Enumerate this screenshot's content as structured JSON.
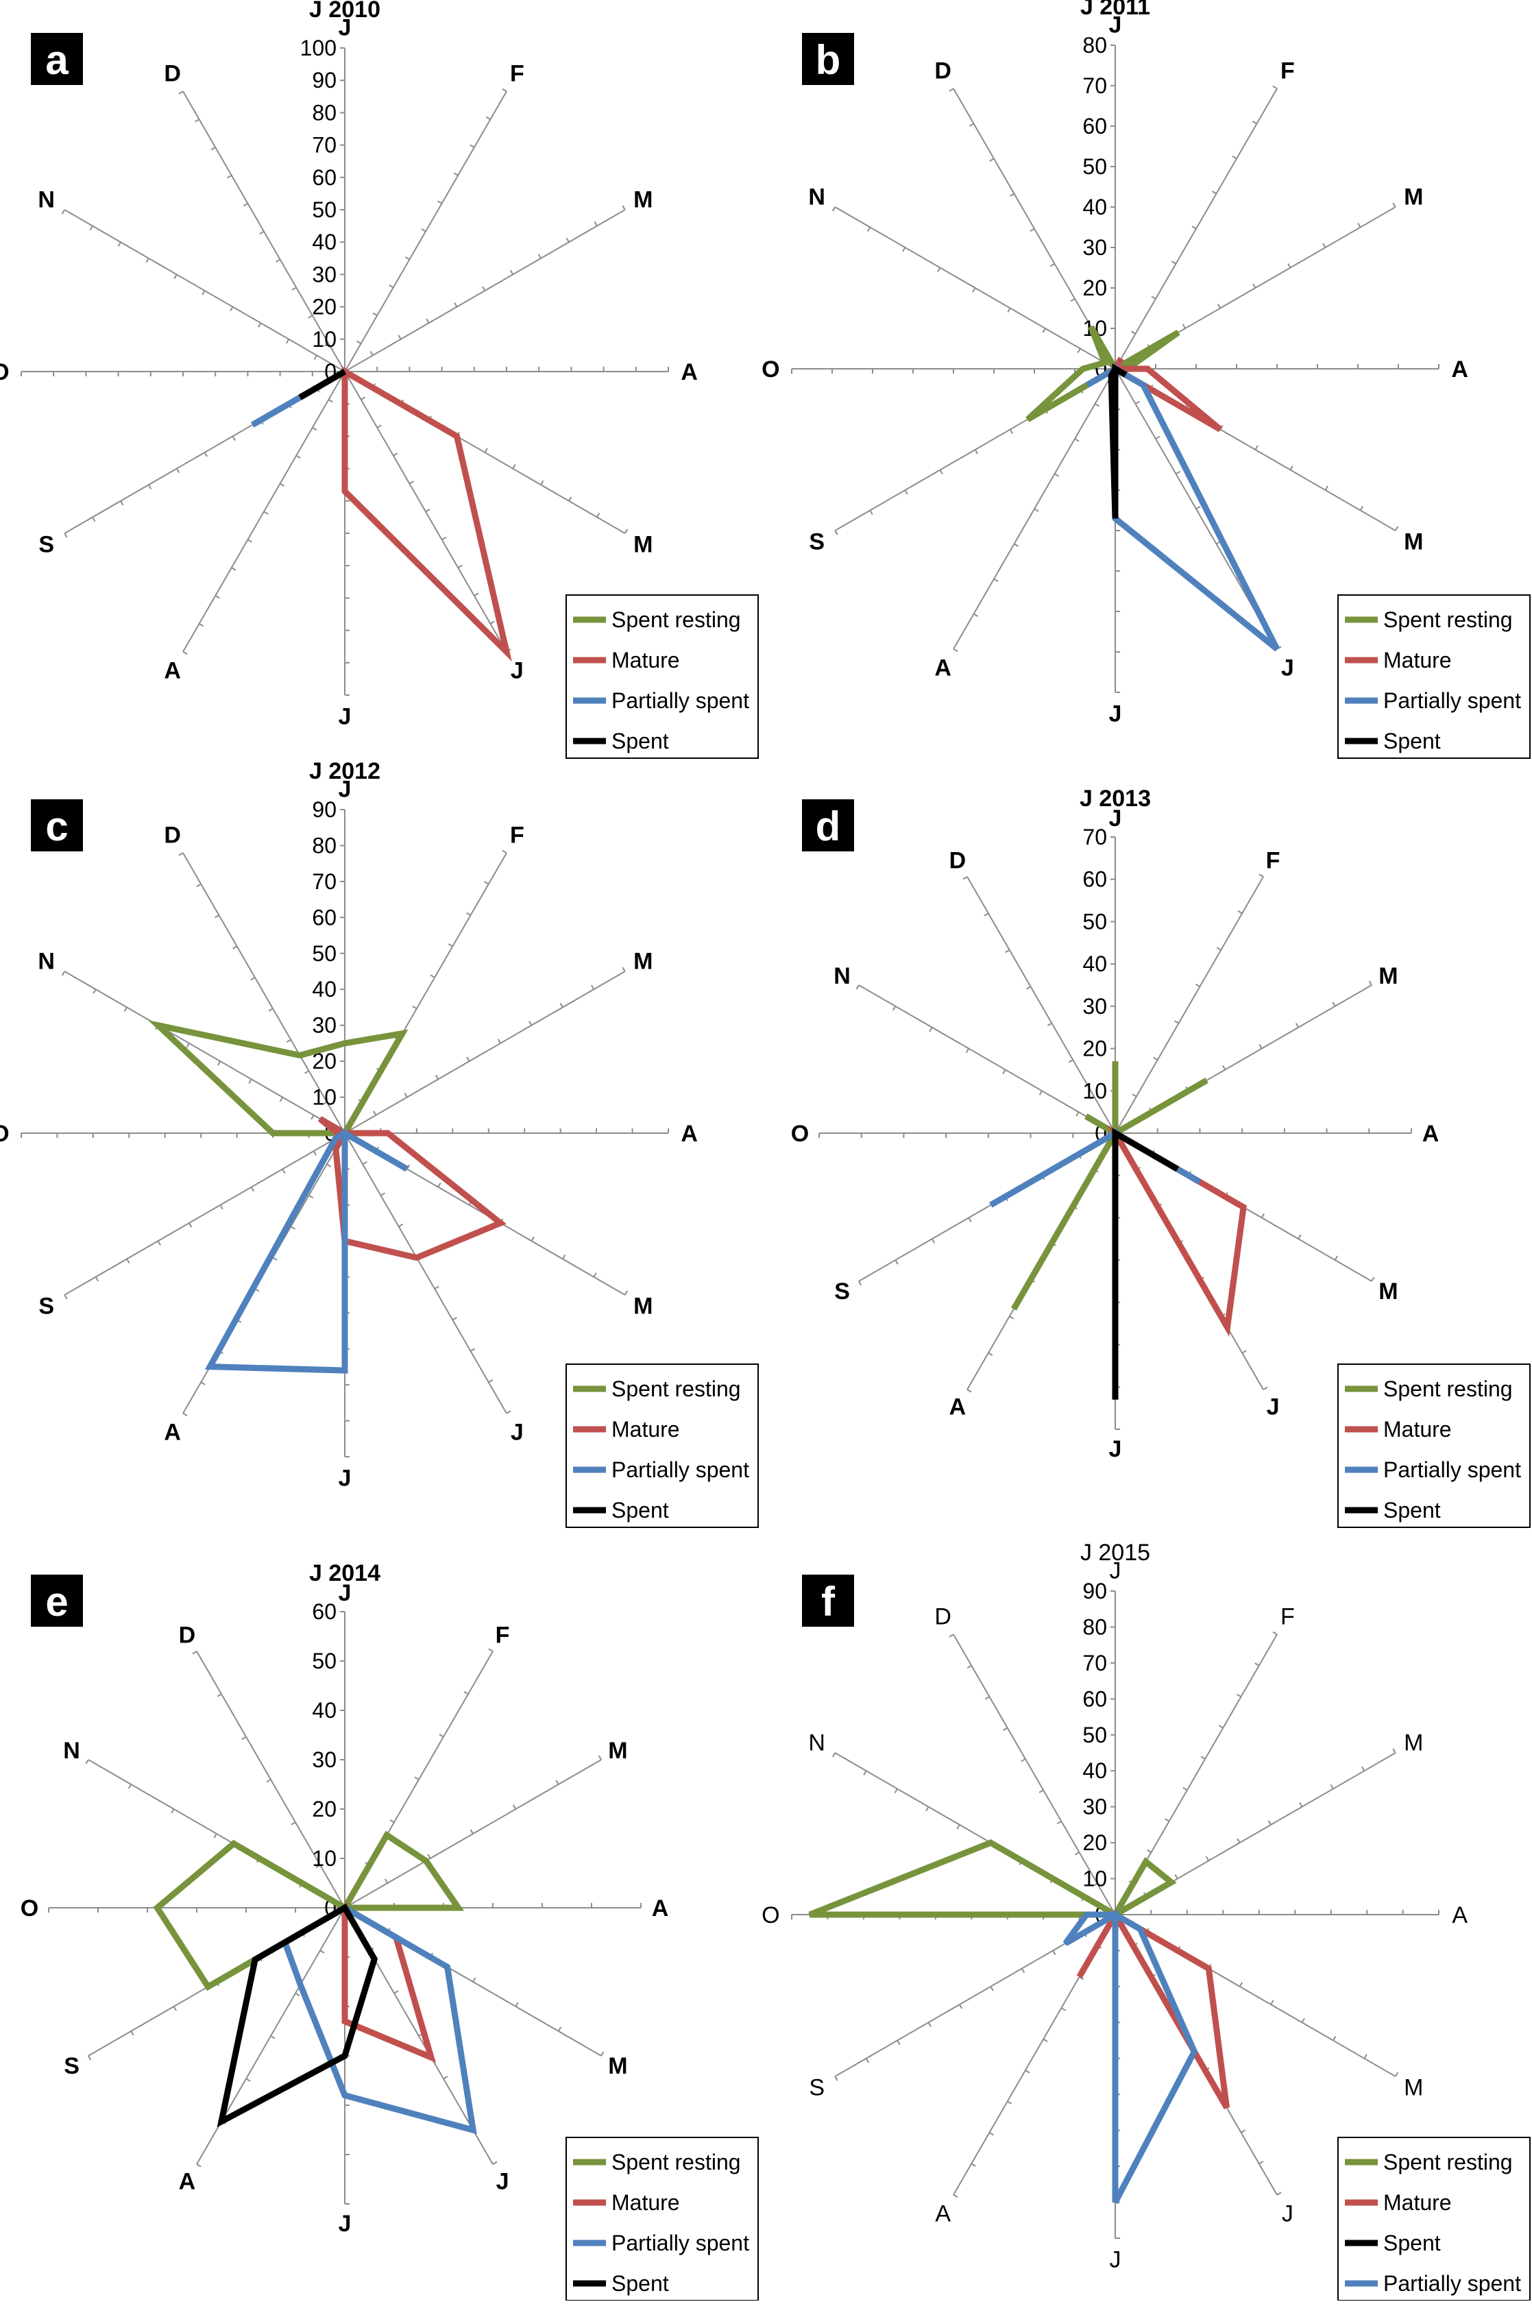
{
  "figure": {
    "months_order": [
      "J",
      "F",
      "M",
      "A",
      "M",
      "J",
      "J",
      "A",
      "S",
      "O",
      "N",
      "D"
    ],
    "month_labels": [
      "J",
      "F",
      "M",
      "A",
      "M",
      "J",
      "J",
      "A",
      "S",
      "O",
      "N",
      "D"
    ],
    "colors": {
      "Spent resting": "#77933C",
      "Mature": "#C0504D",
      "Partially spent": "#4F81BD",
      "Spent": "#000000",
      "axis": "#8c8c8c",
      "panel_letter_bg": "#000000",
      "panel_letter_fg": "#ffffff"
    }
  },
  "chart_data": [
    {
      "type": "radar",
      "panel_label": "a",
      "title": "J 2010",
      "title_bold": true,
      "r_axis": {
        "min": 0,
        "max": 100,
        "step": 10,
        "tick_labels": [
          "0",
          "10",
          "20",
          "30",
          "40",
          "50",
          "60",
          "70",
          "80",
          "90",
          "100"
        ]
      },
      "legend": {
        "placement": "bottom-right",
        "entries": [
          "Spent resting",
          "Mature",
          "Partially spent",
          "Spent"
        ]
      },
      "series": [
        {
          "name": "Spent resting",
          "values": [
            0,
            0,
            0,
            0,
            0,
            0,
            0,
            0,
            0,
            0,
            0,
            0
          ]
        },
        {
          "name": "Mature",
          "values": [
            0,
            0,
            0,
            0,
            40,
            100,
            37,
            0,
            0,
            0,
            0,
            0
          ]
        },
        {
          "name": "Partially spent",
          "values": [
            0,
            0,
            0,
            0,
            0,
            0,
            0,
            0,
            33,
            0,
            0,
            0
          ]
        },
        {
          "name": "Spent",
          "values": [
            0,
            0,
            0,
            0,
            0,
            0,
            0,
            0,
            16,
            0,
            0,
            0
          ]
        }
      ]
    },
    {
      "type": "radar",
      "panel_label": "b",
      "title": "J 2011",
      "title_bold": true,
      "r_axis": {
        "min": 0,
        "max": 80,
        "step": 10,
        "tick_labels": [
          "0",
          "10",
          "20",
          "30",
          "40",
          "50",
          "60",
          "70",
          "80"
        ]
      },
      "legend": {
        "placement": "bottom-right",
        "entries": [
          "Spent resting",
          "Mature",
          "Partially spent",
          "Spent"
        ]
      },
      "series": [
        {
          "name": "Spent resting",
          "values": [
            0,
            0,
            18,
            3,
            2,
            0,
            0,
            0,
            25,
            8,
            3,
            12
          ]
        },
        {
          "name": "Mature",
          "values": [
            0,
            3,
            0,
            8,
            30,
            0,
            14,
            0,
            0,
            0,
            0,
            0
          ]
        },
        {
          "name": "Partially spent",
          "values": [
            0,
            0,
            0,
            0,
            8,
            80,
            37,
            0,
            8,
            0,
            0,
            0
          ]
        },
        {
          "name": "Spent",
          "values": [
            0,
            0,
            0,
            0,
            3,
            0,
            37,
            2,
            0,
            0,
            0,
            0
          ]
        }
      ]
    },
    {
      "type": "radar",
      "panel_label": "c",
      "title": "J 2012",
      "title_bold": true,
      "r_axis": {
        "min": 0,
        "max": 90,
        "step": 10,
        "tick_labels": [
          "0",
          "10",
          "20",
          "30",
          "40",
          "50",
          "60",
          "70",
          "80",
          "90"
        ]
      },
      "legend": {
        "placement": "bottom-right",
        "entries": [
          "Spent resting",
          "Mature",
          "Partially spent",
          "Spent"
        ]
      },
      "series": [
        {
          "name": "Spent resting",
          "values": [
            25,
            32,
            0,
            0,
            0,
            0,
            0,
            2,
            0,
            20,
            60,
            25
          ]
        },
        {
          "name": "Mature",
          "values": [
            0,
            0,
            0,
            12,
            50,
            40,
            30,
            5,
            0,
            2,
            8,
            0
          ]
        },
        {
          "name": "Partially spent",
          "values": [
            0,
            0,
            0,
            0,
            20,
            0,
            66,
            75,
            3,
            0,
            0,
            0
          ]
        },
        {
          "name": "Spent",
          "values": [
            0,
            0,
            0,
            0,
            0,
            0,
            0,
            0,
            0,
            0,
            0,
            0
          ]
        }
      ]
    },
    {
      "type": "radar",
      "panel_label": "d",
      "title": "J 2013",
      "title_bold": true,
      "r_axis": {
        "min": 0,
        "max": 70,
        "step": 10,
        "tick_labels": [
          "0",
          "10",
          "20",
          "30",
          "40",
          "50",
          "60",
          "70"
        ]
      },
      "legend": {
        "placement": "bottom-right",
        "entries": [
          "Spent resting",
          "Mature",
          "Partially spent",
          "Spent"
        ]
      },
      "series": [
        {
          "name": "Spent resting",
          "values": [
            17,
            0,
            25,
            0,
            0,
            0,
            0,
            48,
            0,
            0,
            8,
            0
          ]
        },
        {
          "name": "Mature",
          "values": [
            0,
            0,
            0,
            0,
            35,
            53,
            0,
            0,
            0,
            0,
            0,
            0
          ]
        },
        {
          "name": "Partially spent",
          "values": [
            0,
            0,
            0,
            0,
            23,
            0,
            30,
            0,
            34,
            0,
            0,
            0
          ]
        },
        {
          "name": "Spent",
          "values": [
            0,
            0,
            0,
            0,
            17,
            0,
            63,
            0,
            0,
            0,
            0,
            0
          ]
        }
      ]
    },
    {
      "type": "radar",
      "panel_label": "e",
      "title": "J 2014",
      "title_bold": true,
      "r_axis": {
        "min": 0,
        "max": 60,
        "step": 10,
        "tick_labels": [
          "0",
          "10",
          "20",
          "30",
          "40",
          "50",
          "60"
        ]
      },
      "legend": {
        "placement": "bottom-right",
        "entries": [
          "Spent resting",
          "Mature",
          "Partially spent",
          "Spent"
        ]
      },
      "series": [
        {
          "name": "Spent resting",
          "values": [
            0,
            17,
            19,
            23,
            0,
            0,
            0,
            0,
            32,
            38,
            26,
            0
          ]
        },
        {
          "name": "Mature",
          "values": [
            0,
            0,
            0,
            0,
            12,
            35,
            23,
            0,
            14,
            0,
            0,
            0
          ]
        },
        {
          "name": "Partially spent",
          "values": [
            0,
            0,
            0,
            0,
            24,
            52,
            38,
            18,
            14,
            0,
            0,
            0
          ]
        },
        {
          "name": "Spent",
          "values": [
            0,
            0,
            0,
            0,
            0,
            12,
            30,
            50,
            21,
            0,
            0,
            0
          ]
        }
      ]
    },
    {
      "type": "radar",
      "panel_label": "f",
      "title": "J 2015",
      "title_bold": false,
      "r_axis": {
        "min": 0,
        "max": 90,
        "step": 10,
        "tick_labels": [
          "0",
          "10",
          "20",
          "30",
          "40",
          "50",
          "60",
          "70",
          "80",
          "90"
        ]
      },
      "legend": {
        "placement": "bottom-right",
        "entries": [
          "Spent resting",
          "Mature",
          "Spent",
          "Partially spent"
        ]
      },
      "series": [
        {
          "name": "Spent resting",
          "values": [
            0,
            17,
            18,
            0,
            0,
            0,
            0,
            0,
            0,
            85,
            40,
            0
          ]
        },
        {
          "name": "Mature",
          "values": [
            0,
            0,
            0,
            0,
            30,
            62,
            0,
            20,
            0,
            0,
            0,
            0
          ]
        },
        {
          "name": "Spent",
          "values": [
            0,
            0,
            0,
            0,
            0,
            0,
            0,
            0,
            0,
            0,
            0,
            0
          ]
        },
        {
          "name": "Partially spent",
          "values": [
            0,
            0,
            0,
            0,
            8,
            44,
            80,
            0,
            16,
            8,
            0,
            0
          ]
        }
      ]
    }
  ]
}
